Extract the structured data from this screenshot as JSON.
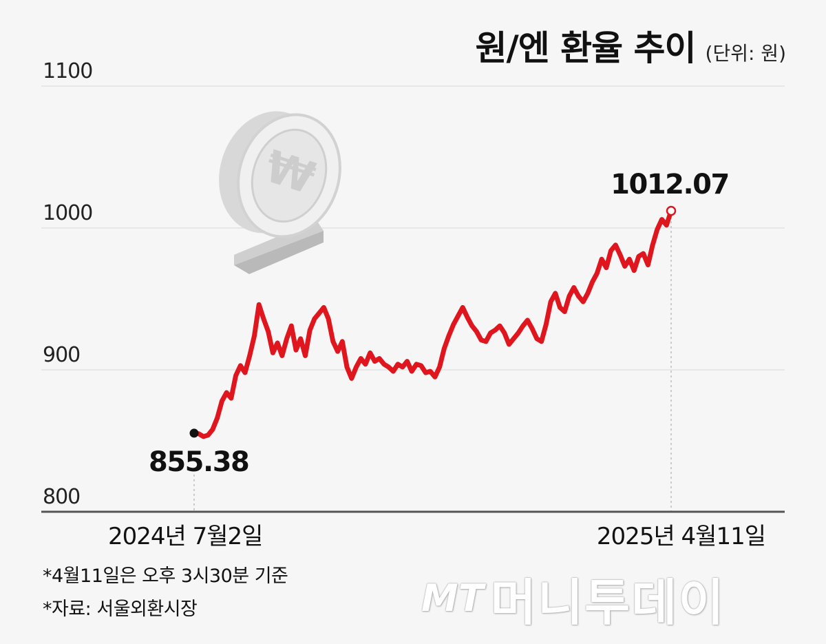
{
  "header": {
    "title": "원/엔 환율 추이",
    "unit": "(단위: 원)"
  },
  "notes": [
    "*4월11일은 오후 3시30분 기준",
    "*자료: 서울외환시장"
  ],
  "watermark": {
    "mt": "MT",
    "name": "머니투데이"
  },
  "chart_data": {
    "type": "line",
    "title": "원/엔 환율 추이",
    "unit": "(단위: 원)",
    "ylim": [
      800,
      1100
    ],
    "yticks": [
      800,
      900,
      1000,
      1100
    ],
    "ytick_labels": [
      "800",
      "900",
      "1000",
      "1100"
    ],
    "x_start_label": "2024년 7월2일",
    "x_end_label": "2025년 4월11일",
    "start_value": 855.38,
    "end_value": 1012.07,
    "start_label": "855.38",
    "end_label": "1012.07",
    "grid": true,
    "colors": {
      "line": "#e0161f",
      "grid": "#e2e2e2",
      "axis": "#555555",
      "start_marker": "#111111"
    },
    "series": [
      {
        "values": [
          855.38,
          855,
          853,
          854,
          858,
          866,
          878,
          884,
          880,
          896,
          903,
          898,
          910,
          924,
          946,
          936,
          927,
          912,
          919,
          910,
          922,
          931,
          914,
          922,
          910,
          928,
          936,
          940,
          944,
          936,
          920,
          913,
          920,
          902,
          894,
          902,
          908,
          904,
          912,
          906,
          908,
          904,
          902,
          899,
          904,
          902,
          906,
          899,
          904,
          903,
          898,
          899,
          895,
          902,
          915,
          924,
          932,
          938,
          944,
          937,
          931,
          927,
          921,
          920,
          926,
          928,
          931,
          926,
          918,
          922,
          926,
          931,
          935,
          929,
          922,
          920,
          932,
          948,
          954,
          944,
          941,
          952,
          958,
          952,
          948,
          954,
          962,
          968,
          978,
          972,
          984,
          988,
          981,
          973,
          978,
          970,
          980,
          982,
          974,
          988,
          999,
          1006,
          1002,
          1012.07
        ]
      }
    ],
    "illustration": "won-coin-icon"
  }
}
